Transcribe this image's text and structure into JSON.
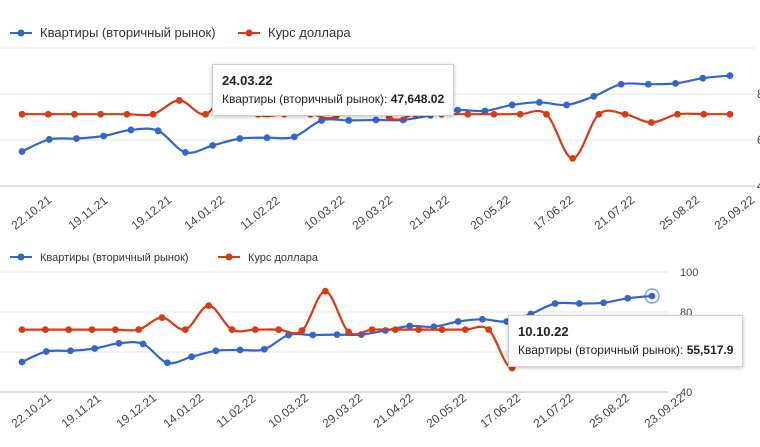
{
  "chart_data": [
    {
      "type": "line",
      "legend_position": "top-left",
      "x_tick_labels": [
        "22.10.21",
        "19.11.21",
        "19.12.21",
        "14.01.22",
        "11.02.22",
        "10.03.22",
        "29.03.22",
        "21.04.22",
        "20.05.22",
        "17.06.22",
        "21.07.22",
        "25.08.22",
        "23.09.22"
      ],
      "y_right_tick_labels": [
        "",
        "8",
        "6",
        "4"
      ],
      "series": [
        {
          "name": "Квартиры (вторичный рынок)",
          "color": "#3366cc",
          "values": [
            44.0,
            45.4,
            45.5,
            45.8,
            46.5,
            46.4,
            43.9,
            44.7,
            45.5,
            45.6,
            45.7,
            47.6,
            47.6,
            47.65,
            47.65,
            48.2,
            48.8,
            48.7,
            49.4,
            49.7,
            49.4,
            50.4,
            51.8,
            51.8,
            51.9,
            52.5,
            52.8
          ]
        },
        {
          "name": "Курс доллара",
          "color": "#dc3912",
          "values": [
            73,
            73,
            73,
            73,
            73,
            73,
            75.5,
            73,
            78,
            73,
            73,
            73,
            72.8,
            81,
            72.5,
            73,
            73,
            73,
            73,
            73,
            73,
            65,
            73,
            73,
            71.5,
            73,
            73,
            73
          ]
        }
      ],
      "tooltip": {
        "date": "24.03.22",
        "series_label": "Квартиры (вторичный рынок):",
        "value": "47,648.02"
      }
    },
    {
      "type": "line",
      "legend_position": "top-left",
      "x_tick_labels": [
        "22.10.21",
        "19.11.21",
        "19.12.21",
        "14.01.22",
        "11.02.22",
        "10.03.22",
        "29.03.22",
        "21.04.22",
        "20.05.22",
        "17.06.22",
        "21.07.22",
        "25.08.22",
        "23.09.22"
      ],
      "y_right_tick_labels": [
        "100",
        "80",
        "",
        "40"
      ],
      "series": [
        {
          "name": "Квартиры (вторичный рынок)",
          "color": "#3366cc",
          "values": [
            44.0,
            45.4,
            45.5,
            45.8,
            46.5,
            46.4,
            43.9,
            44.7,
            45.5,
            45.6,
            45.7,
            47.6,
            47.6,
            47.65,
            47.65,
            48.2,
            48.8,
            48.7,
            49.4,
            49.7,
            49.4,
            50.4,
            51.8,
            51.8,
            51.9,
            52.5,
            52.8
          ]
        },
        {
          "name": "Курс доллара",
          "color": "#dc3912",
          "values": [
            73,
            73,
            73,
            73,
            73,
            73,
            75.5,
            73,
            78,
            73,
            73,
            73,
            72.8,
            81,
            72.5,
            73,
            73,
            73,
            73,
            73,
            73,
            65,
            73,
            73,
            71.5,
            73,
            73,
            73
          ]
        }
      ],
      "tooltip": {
        "date": "10.10.22",
        "series_label": "Квартиры (вторичный рынок):",
        "value": "55,517.9"
      }
    }
  ]
}
